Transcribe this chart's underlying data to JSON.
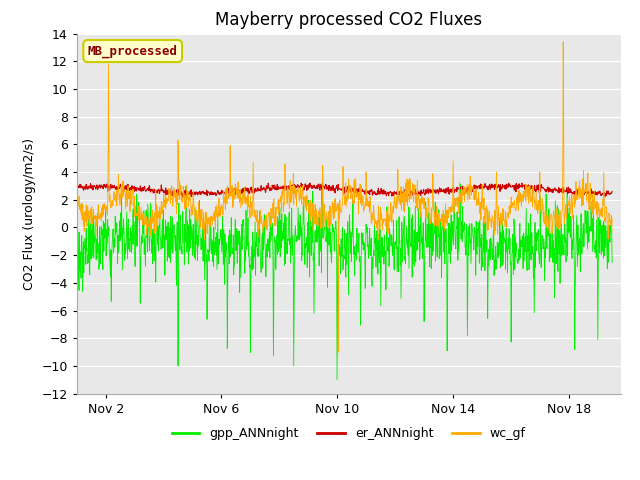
{
  "title": "Mayberry processed CO2 Fluxes",
  "ylabel": "CO2 Flux (urology/m2/s)",
  "ylim": [
    -12,
    14
  ],
  "yticks": [
    -12,
    -10,
    -8,
    -6,
    -4,
    -2,
    0,
    2,
    4,
    6,
    8,
    10,
    12,
    14
  ],
  "xtick_labels": [
    "Nov 2",
    "Nov 6",
    "Nov 10",
    "Nov 14",
    "Nov 18"
  ],
  "xtick_positions": [
    2,
    6,
    10,
    14,
    18
  ],
  "xlim": [
    1.0,
    19.8
  ],
  "color_gpp": "#00ee00",
  "color_er": "#cc0000",
  "color_wc": "#ffaa00",
  "legend_label_gpp": "gpp_ANNnight",
  "legend_label_er": "er_ANNnight",
  "legend_label_wc": "wc_gf",
  "annotation_text": "MB_processed",
  "annotation_color": "#880000",
  "annotation_bg": "#ffffcc",
  "annotation_edge": "#cccc00",
  "plot_bg": "#e8e8e8",
  "fig_bg": "#ffffff",
  "grid_color": "#ffffff",
  "title_fontsize": 12,
  "axis_fontsize": 9,
  "tick_fontsize": 9,
  "legend_fontsize": 9,
  "n_points": 1344,
  "seed": 42
}
